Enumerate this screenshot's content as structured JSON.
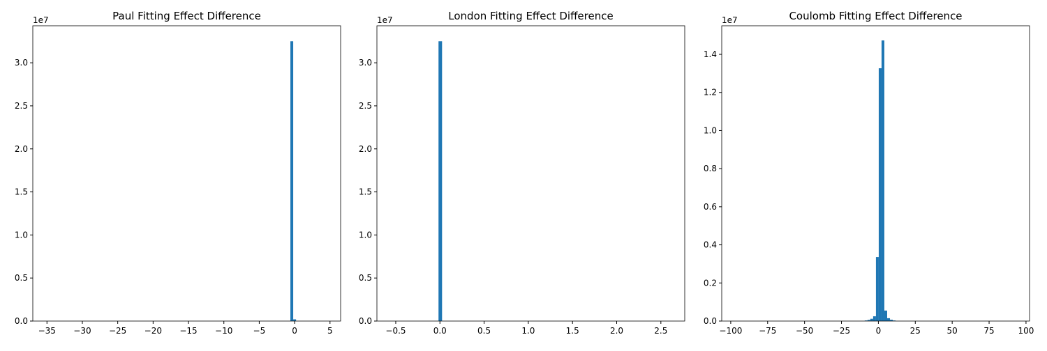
{
  "chart_data": [
    {
      "type": "histogram",
      "title": "Paul Fitting Effect Difference",
      "y_offset_label": "1e7",
      "color": "#1f77b4",
      "bins": [
        -35.2,
        -0.6,
        -0.2,
        0.2,
        5.2
      ],
      "counts": [
        0,
        3.25,
        0.02,
        0
      ],
      "xlim": [
        -37,
        6.5
      ],
      "ylim": [
        0,
        3.43
      ],
      "xticks": [
        {
          "value": -35,
          "label": "−35"
        },
        {
          "value": -30,
          "label": "−30"
        },
        {
          "value": -25,
          "label": "−25"
        },
        {
          "value": -20,
          "label": "−20"
        },
        {
          "value": -15,
          "label": "−15"
        },
        {
          "value": -10,
          "label": "−10"
        },
        {
          "value": -5,
          "label": "−5"
        },
        0,
        5
      ],
      "yticks": [
        {
          "value": 0,
          "label": "0.0"
        },
        0.5,
        {
          "value": 1,
          "label": "1.0"
        },
        1.5,
        {
          "value": 2,
          "label": "2.0"
        },
        2.5,
        {
          "value": 3,
          "label": "3.0"
        }
      ]
    },
    {
      "type": "histogram",
      "title": "London Fitting Effect Difference",
      "y_offset_label": "1e7",
      "color": "#1f77b4",
      "bins": [
        -0.57,
        -0.016,
        0.024,
        2.63
      ],
      "counts": [
        0,
        3.25,
        0
      ],
      "xlim": [
        -0.713,
        2.77
      ],
      "ylim": [
        0,
        3.43
      ],
      "xticks": [
        {
          "value": -0.5,
          "label": "−0.5"
        },
        {
          "value": 0,
          "label": "0.0"
        },
        0.5,
        {
          "value": 1,
          "label": "1.0"
        },
        1.5,
        {
          "value": 2,
          "label": "2.0"
        },
        2.5
      ],
      "yticks": [
        {
          "value": 0,
          "label": "0.0"
        },
        0.5,
        {
          "value": 1,
          "label": "1.0"
        },
        1.5,
        {
          "value": 2,
          "label": "2.0"
        },
        2.5,
        {
          "value": 3,
          "label": "3.0"
        }
      ]
    },
    {
      "type": "histogram",
      "title": "Coulomb Fitting Effect Difference",
      "y_offset_label": "1e7",
      "color": "#1f77b4",
      "bins": [
        -100,
        -9.25,
        -7.35,
        -5.45,
        -3.55,
        -1.65,
        0.25,
        2.15,
        4.05,
        5.95,
        7.85,
        9.75,
        11.65,
        95
      ],
      "counts": [
        0,
        0.003,
        0.006,
        0.012,
        0.025,
        0.336,
        1.327,
        1.473,
        0.055,
        0.015,
        0.007,
        0.003,
        0
      ],
      "xlim": [
        -106.1,
        102.4
      ],
      "ylim": [
        0,
        1.55
      ],
      "xticks": [
        {
          "value": -100,
          "label": "−100"
        },
        {
          "value": -75,
          "label": "−75"
        },
        {
          "value": -50,
          "label": "−50"
        },
        {
          "value": -25,
          "label": "−25"
        },
        0,
        25,
        50,
        75,
        100
      ],
      "yticks": [
        {
          "value": 0,
          "label": "0.0"
        },
        0.2,
        0.4,
        0.6,
        0.8,
        {
          "value": 1,
          "label": "1.0"
        },
        1.2,
        1.4
      ]
    }
  ]
}
